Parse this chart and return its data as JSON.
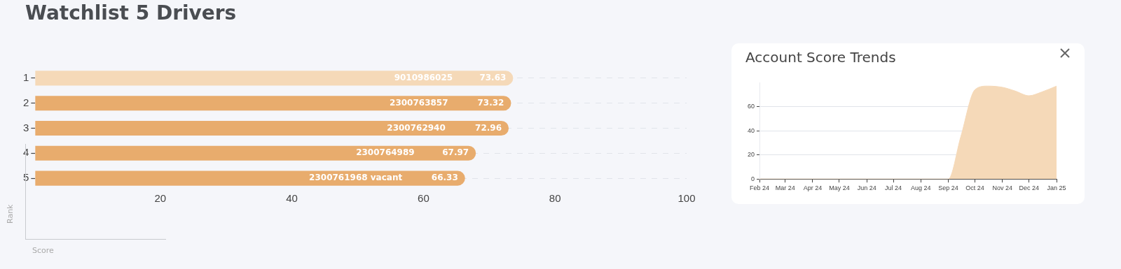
{
  "chart_data": [
    {
      "type": "bar",
      "orientation": "horizontal",
      "title": "Watchlist 5 Drivers",
      "xlabel": "Score",
      "ylabel": "Rank",
      "categories": [
        "1",
        "2",
        "3",
        "4",
        "5"
      ],
      "values": [
        73.63,
        73.32,
        72.96,
        67.97,
        66.33
      ],
      "colors": [
        "#f5d9b8",
        "#e8ac6d",
        "#e8ac6d",
        "#e8ac6d",
        "#e8ac6d"
      ],
      "data_labels": true,
      "annotations": [
        {
          "text": "9010986025",
          "x": 60,
          "y": "1"
        },
        {
          "text": "2300763857",
          "x": 59.3,
          "y": "2"
        },
        {
          "text": "2300762940",
          "x": 58.9,
          "y": "3"
        },
        {
          "text": "2300764989",
          "x": 54.2,
          "y": "4"
        },
        {
          "text": "2300761968 vacant",
          "x": 49.7,
          "y": "5"
        }
      ],
      "xlim": [
        1,
        100
      ],
      "xticks": [
        20,
        40,
        60,
        80,
        100
      ],
      "grid": "y",
      "legend": false
    },
    {
      "type": "area",
      "title": "Account Score Trends",
      "x": [
        "2024-02-01",
        "2024-03-01",
        "2024-04-01",
        "2024-05-01",
        "2024-06-01",
        "2024-07-01",
        "2024-08-01",
        "2024-09-01",
        "2024-09-15",
        "2024-10-01",
        "2024-10-15",
        "2024-11-01",
        "2024-11-15",
        "2024-12-01",
        "2024-12-15",
        "2025-01-01"
      ],
      "values": [
        0,
        0,
        0,
        0,
        0,
        0,
        0,
        0,
        35,
        74,
        77,
        76,
        73,
        69,
        72,
        77
      ],
      "color": "#f5d9b8",
      "xlim": [
        "2024-02-01",
        "2025-01-01"
      ],
      "xticks": [
        {
          "value": "2024-02-01",
          "label": "Feb 24"
        },
        {
          "value": "2024-03-01",
          "label": "Mar 24"
        },
        {
          "value": "2024-04-01",
          "label": "Apr 24"
        },
        {
          "value": "2024-05-01",
          "label": "May 24"
        },
        {
          "value": "2024-06-01",
          "label": "Jun 24"
        },
        {
          "value": "2024-07-01",
          "label": "Jul 24"
        },
        {
          "value": "2024-08-01",
          "label": "Aug 24"
        },
        {
          "value": "2024-09-01",
          "label": "Sep 24"
        },
        {
          "value": "2024-10-01",
          "label": "Oct 24"
        },
        {
          "value": "2024-11-01",
          "label": "Nov 24"
        },
        {
          "value": "2024-12-01",
          "label": "Dec 24"
        },
        {
          "value": "2025-01-01",
          "label": "Jan 25"
        }
      ],
      "ylim": [
        0,
        80
      ],
      "yticks": [
        0,
        20,
        40,
        60
      ],
      "grid": "y",
      "legend": false
    }
  ]
}
